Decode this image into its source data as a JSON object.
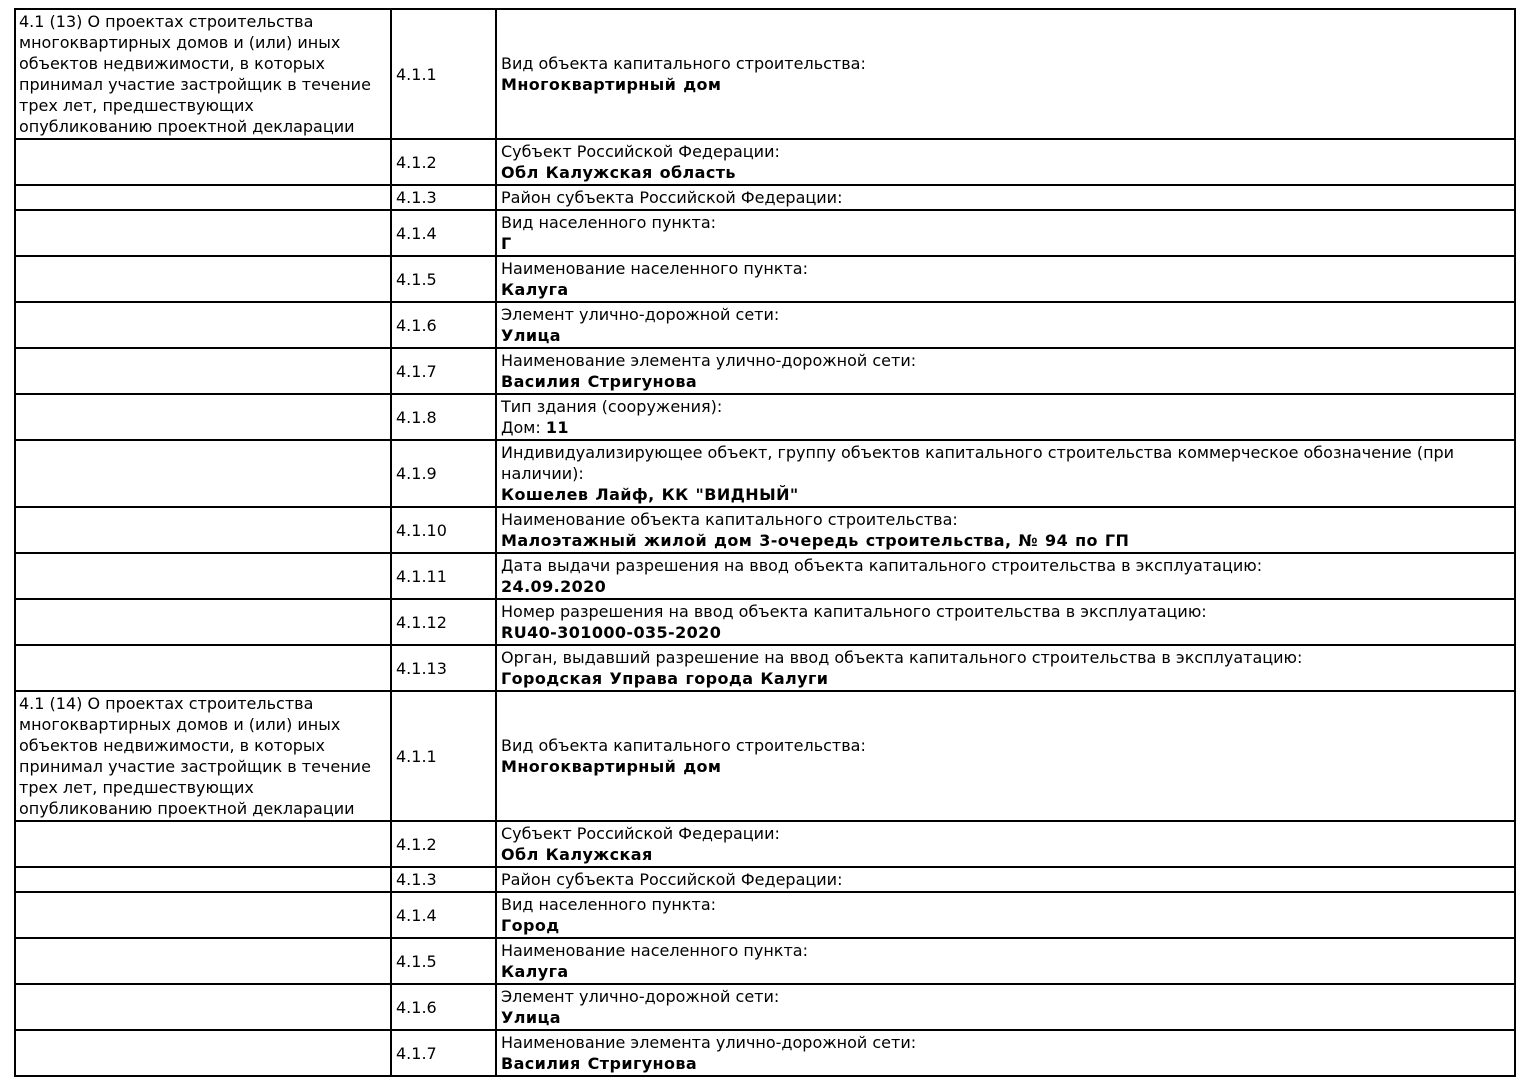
{
  "colors": {
    "border": "#000000",
    "text": "#000000",
    "background": "#ffffff"
  },
  "sections": [
    {
      "description": "4.1 (13) О проектах строительства многоквартирных домов и (или) иных объектов недвижимости, в которых принимал участие застройщик в течение трех лет, предшествующих опубликованию проектной декларации",
      "rows": [
        {
          "num": "4.1.1",
          "label": "Вид объекта капитального строительства:",
          "value": "Многоквартирный дом"
        },
        {
          "num": "4.1.2",
          "label": "Субъект Российской Федерации:",
          "value": "Обл Калужская область"
        },
        {
          "num": "4.1.3",
          "label": "Район субъекта Российской Федерации:",
          "value": ""
        },
        {
          "num": "4.1.4",
          "label": "Вид населенного пункта:",
          "value": "Г"
        },
        {
          "num": "4.1.5",
          "label": "Наименование населенного пункта:",
          "value": "Калуга"
        },
        {
          "num": "4.1.6",
          "label": "Элемент улично-дорожной сети:",
          "value": "Улица"
        },
        {
          "num": "4.1.7",
          "label": "Наименование элемента улично-дорожной сети:",
          "value": "Василия Стригунова"
        },
        {
          "num": "4.1.8",
          "label": "Тип здания (сооружения):",
          "value_prefix": "Дом: ",
          "value": "11"
        },
        {
          "num": "4.1.9",
          "label": "Индивидуализирующее объект, группу объектов капитального строительства коммерческое обозначение (при наличии):",
          "value": "Кошелев Лайф, КК \"ВИДНЫЙ\""
        },
        {
          "num": "4.1.10",
          "label": "Наименование объекта капитального строительства:",
          "value": "Малоэтажный жилой дом 3-очередь строительства, № 94 по ГП"
        },
        {
          "num": "4.1.11",
          "label": "Дата выдачи разрешения на ввод объекта капитального строительства в эксплуатацию:",
          "value": "24.09.2020"
        },
        {
          "num": "4.1.12",
          "label": "Номер разрешения на ввод объекта капитального строительства в эксплуатацию:",
          "value": "RU40-301000-035-2020"
        },
        {
          "num": "4.1.13",
          "label": "Орган, выдавший разрешение на ввод объекта капитального строительства в эксплуатацию:",
          "value": "Городская Управа города Калуги"
        }
      ]
    },
    {
      "description": "4.1 (14) О проектах строительства многоквартирных домов и (или) иных объектов недвижимости, в которых принимал участие застройщик в течение трех лет, предшествующих опубликованию проектной декларации",
      "rows": [
        {
          "num": "4.1.1",
          "label": "Вид объекта капитального строительства:",
          "value": "Многоквартирный дом"
        },
        {
          "num": "4.1.2",
          "label": "Субъект Российской Федерации:",
          "value": "Обл Калужская"
        },
        {
          "num": "4.1.3",
          "label": "Район субъекта Российской Федерации:",
          "value": ""
        },
        {
          "num": "4.1.4",
          "label": "Вид населенного пункта:",
          "value": "Город"
        },
        {
          "num": "4.1.5",
          "label": "Наименование населенного пункта:",
          "value": "Калуга"
        },
        {
          "num": "4.1.6",
          "label": "Элемент улично-дорожной сети:",
          "value": "Улица"
        },
        {
          "num": "4.1.7",
          "label": "Наименование элемента улично-дорожной сети:",
          "value": "Василия Стригунова"
        }
      ]
    }
  ]
}
